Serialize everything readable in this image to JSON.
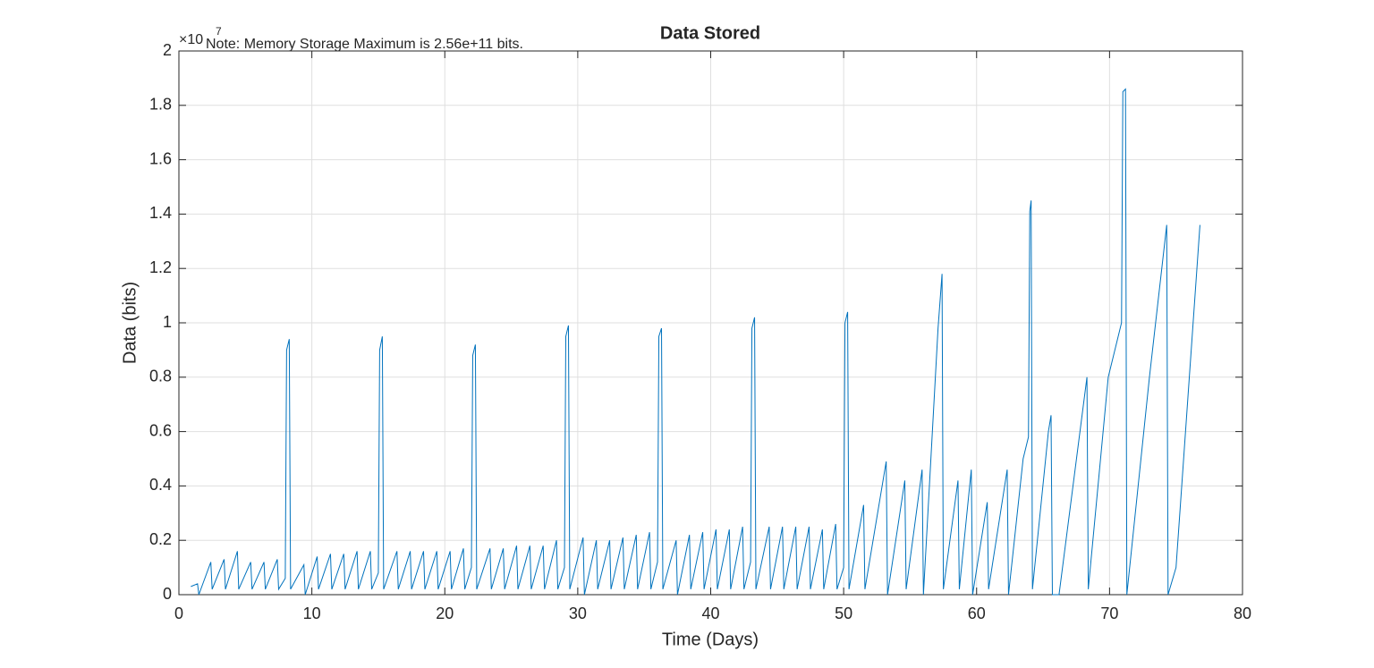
{
  "chart_data": {
    "type": "line",
    "title": "Data Stored",
    "annotation": "Note: Memory Storage Maximum is 2.56e+11 bits.",
    "y_multiplier": {
      "base": "×10",
      "exponent": "7"
    },
    "xlabel": "Time (Days)",
    "ylabel": "Data (bits)",
    "x": [
      0.9,
      1.4,
      1.5,
      2.4,
      2.5,
      3.4,
      3.5,
      4.4,
      4.5,
      5.4,
      5.5,
      6.4,
      6.5,
      7.4,
      7.5,
      8.0,
      8.1,
      8.3,
      8.4,
      9.4,
      9.5,
      10.4,
      10.5,
      11.4,
      11.5,
      12.4,
      12.5,
      13.4,
      13.5,
      14.4,
      14.5,
      15.0,
      15.1,
      15.3,
      15.4,
      16.4,
      16.5,
      17.4,
      17.5,
      18.4,
      18.5,
      19.4,
      19.5,
      20.4,
      20.5,
      21.4,
      21.5,
      22.0,
      22.1,
      22.3,
      22.4,
      23.4,
      23.5,
      24.4,
      24.5,
      25.4,
      25.5,
      26.4,
      26.5,
      27.4,
      27.5,
      28.4,
      28.5,
      29.0,
      29.1,
      29.3,
      29.4,
      30.4,
      30.5,
      31.4,
      31.5,
      32.4,
      32.5,
      33.4,
      33.5,
      34.4,
      34.5,
      35.4,
      35.5,
      36.0,
      36.1,
      36.3,
      36.4,
      37.4,
      37.5,
      38.4,
      38.5,
      39.4,
      39.5,
      40.4,
      40.5,
      41.4,
      41.5,
      42.4,
      42.5,
      43.0,
      43.1,
      43.3,
      43.4,
      44.4,
      44.5,
      45.4,
      45.5,
      46.4,
      46.5,
      47.4,
      47.5,
      48.4,
      48.5,
      49.4,
      49.5,
      50.0,
      50.1,
      50.3,
      50.4,
      51.5,
      51.6,
      53.2,
      53.3,
      54.6,
      54.7,
      55.9,
      56.0,
      57.1,
      57.4,
      57.5,
      58.6,
      58.7,
      59.6,
      59.7,
      60.8,
      60.9,
      62.3,
      62.4,
      63.5,
      63.9,
      64.0,
      64.1,
      64.2,
      65.4,
      65.6,
      65.7,
      66.2,
      68.3,
      68.4,
      69.9,
      70.9,
      71.0,
      71.2,
      71.3,
      73.0,
      74.3,
      74.4,
      75.0,
      76.8
    ],
    "series": [
      {
        "name": "Data",
        "color": "#0072bd",
        "values": [
          0.03,
          0.04,
          0,
          0.12,
          0.02,
          0.13,
          0.02,
          0.16,
          0.02,
          0.12,
          0.02,
          0.12,
          0.02,
          0.13,
          0.02,
          0.06,
          0.9,
          0.94,
          0.02,
          0.11,
          0,
          0.14,
          0.02,
          0.15,
          0.02,
          0.15,
          0.02,
          0.16,
          0.02,
          0.16,
          0.02,
          0.08,
          0.9,
          0.95,
          0.02,
          0.16,
          0.02,
          0.16,
          0.02,
          0.16,
          0.02,
          0.16,
          0.02,
          0.16,
          0.02,
          0.17,
          0.02,
          0.1,
          0.88,
          0.92,
          0.02,
          0.17,
          0.02,
          0.17,
          0.02,
          0.18,
          0.02,
          0.18,
          0.02,
          0.18,
          0.02,
          0.2,
          0.02,
          0.1,
          0.95,
          0.99,
          0.02,
          0.21,
          0,
          0.2,
          0.02,
          0.2,
          0.02,
          0.21,
          0.02,
          0.22,
          0.02,
          0.23,
          0.02,
          0.12,
          0.95,
          0.98,
          0.02,
          0.2,
          0,
          0.22,
          0.02,
          0.23,
          0.02,
          0.24,
          0.02,
          0.24,
          0.02,
          0.25,
          0.02,
          0.12,
          0.98,
          1.02,
          0.02,
          0.25,
          0.02,
          0.25,
          0.02,
          0.25,
          0.02,
          0.25,
          0.02,
          0.24,
          0.02,
          0.26,
          0.02,
          0.1,
          1.0,
          1.04,
          0.02,
          0.33,
          0.02,
          0.49,
          0,
          0.42,
          0.02,
          0.46,
          0,
          0.98,
          1.18,
          0.02,
          0.42,
          0.02,
          0.46,
          0,
          0.34,
          0.02,
          0.46,
          0,
          0.5,
          0.58,
          1.41,
          1.45,
          0.02,
          0.6,
          0.66,
          0,
          0,
          0.8,
          0.02,
          0.8,
          1.0,
          1.85,
          1.86,
          0,
          0.8,
          1.36,
          0,
          0.1,
          1.36
        ]
      }
    ],
    "xlim": [
      0,
      80
    ],
    "xticks": [
      0,
      10,
      20,
      30,
      40,
      50,
      60,
      70,
      80
    ],
    "ylim": [
      0,
      2
    ],
    "yticks": [
      0,
      0.2,
      0.4,
      0.6,
      0.8,
      1,
      1.2,
      1.4,
      1.6,
      1.8,
      2
    ],
    "grid": true
  }
}
